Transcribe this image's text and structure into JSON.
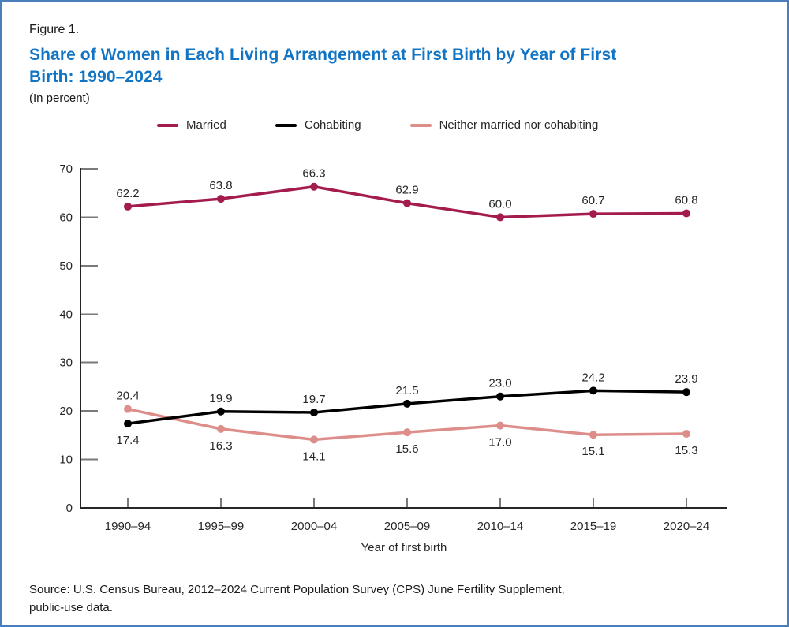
{
  "header": {
    "figure_label": "Figure 1.",
    "title_lines": [
      "Share of Women in Each Living Arrangement at First Birth by Year of First",
      "Birth: 1990–2024"
    ],
    "subtitle": "(In percent)"
  },
  "chart_data": {
    "type": "line",
    "title": "Share of Women in Each Living Arrangement at First Birth by Year of First Birth: 1990–2024",
    "categories": [
      "1990–94",
      "1995–99",
      "2000–04",
      "2005–09",
      "2010–14",
      "2015–19",
      "2020–24"
    ],
    "xlabel": "Year of first birth",
    "ylabel": "",
    "ylim": [
      0,
      70
    ],
    "ytick_interval": 10,
    "grid": false,
    "legend_position": "top",
    "value_decimals": 1,
    "series": [
      {
        "name": "Married",
        "color": "#A41C4D",
        "values": [
          62.2,
          63.8,
          66.3,
          62.9,
          60.0,
          60.7,
          60.8
        ],
        "label_placement": [
          "above",
          "above",
          "above",
          "above",
          "above",
          "above",
          "above"
        ]
      },
      {
        "name": "Cohabiting",
        "color": "#000000",
        "values": [
          17.4,
          19.9,
          19.7,
          21.5,
          23.0,
          24.2,
          23.9
        ],
        "label_placement": [
          "below",
          "above",
          "above",
          "above",
          "above",
          "above",
          "above"
        ]
      },
      {
        "name": "Neither married nor cohabiting",
        "color": "#DD8E8A",
        "values": [
          20.4,
          16.3,
          14.1,
          15.6,
          17.0,
          15.1,
          15.3
        ],
        "label_placement": [
          "above",
          "below",
          "below",
          "below",
          "below",
          "below",
          "below"
        ]
      }
    ]
  },
  "footer": {
    "source_lines": [
      "Source: U.S. Census Bureau, 2012–2024 Current Population Survey (CPS) June Fertility Supplement,",
      "public-use data."
    ]
  },
  "colors": {
    "title": "#1274C4",
    "border": "#4A7EBB",
    "axis": "#262626",
    "tick": "#7A7A7A",
    "label_text": "#262626"
  }
}
